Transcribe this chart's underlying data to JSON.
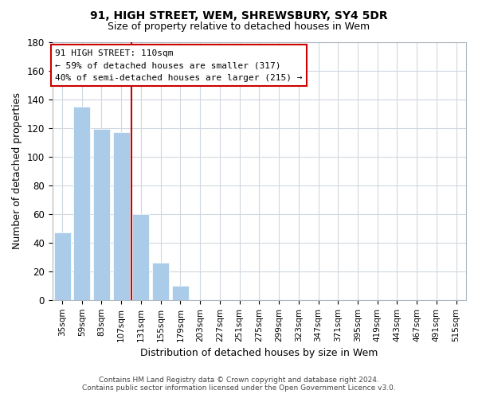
{
  "title": "91, HIGH STREET, WEM, SHREWSBURY, SY4 5DR",
  "subtitle": "Size of property relative to detached houses in Wem",
  "xlabel": "Distribution of detached houses by size in Wem",
  "ylabel": "Number of detached properties",
  "categories": [
    "35sqm",
    "59sqm",
    "83sqm",
    "107sqm",
    "131sqm",
    "155sqm",
    "179sqm",
    "203sqm",
    "227sqm",
    "251sqm",
    "275sqm",
    "299sqm",
    "323sqm",
    "347sqm",
    "371sqm",
    "395sqm",
    "419sqm",
    "443sqm",
    "467sqm",
    "491sqm",
    "515sqm"
  ],
  "values": [
    47,
    135,
    119,
    117,
    60,
    26,
    10,
    0,
    0,
    0,
    0,
    0,
    0,
    0,
    0,
    0,
    0,
    0,
    0,
    0,
    0
  ],
  "bar_color": "#aacce8",
  "ylim": [
    0,
    180
  ],
  "yticks": [
    0,
    20,
    40,
    60,
    80,
    100,
    120,
    140,
    160,
    180
  ],
  "red_line_x": 3.5,
  "property_label": "91 HIGH STREET: 110sqm",
  "annotation_line1": "← 59% of detached houses are smaller (317)",
  "annotation_line2": "40% of semi-detached houses are larger (215) →",
  "annotation_border_color": "#cc0000",
  "footer_line1": "Contains HM Land Registry data © Crown copyright and database right 2024.",
  "footer_line2": "Contains public sector information licensed under the Open Government Licence v3.0.",
  "background_color": "#ffffff",
  "grid_color": "#d0d8e0"
}
